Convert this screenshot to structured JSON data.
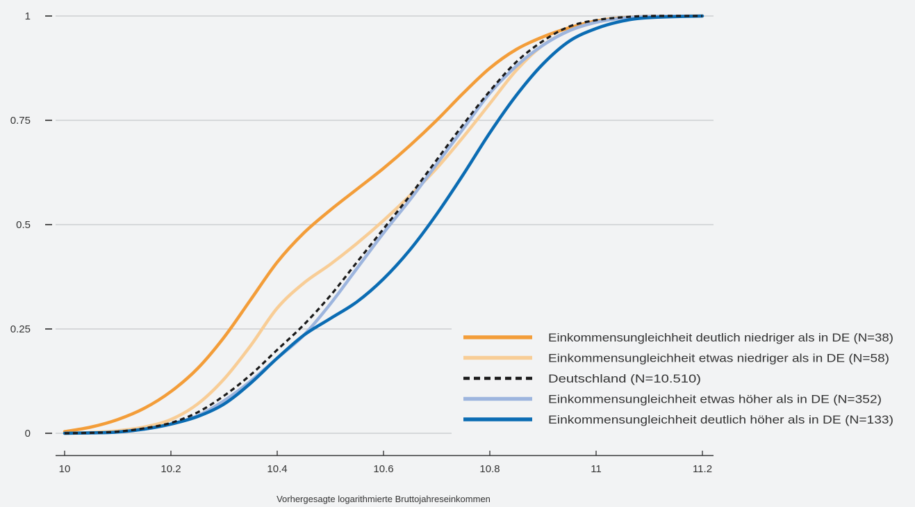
{
  "chart_data": {
    "type": "line",
    "title": "",
    "xlabel": "Vorhergesagte logarithmierte Bruttojahreseinkommen",
    "ylabel": "",
    "xlim": [
      10,
      11.2
    ],
    "ylim": [
      0,
      1
    ],
    "x_ticks": [
      "10",
      "10.2",
      "10.4",
      "10.6",
      "10.8",
      "11",
      "11.2"
    ],
    "y_ticks": [
      "0",
      "0.25",
      "0.5",
      "0.75",
      "1"
    ],
    "grid": "horizontal",
    "legend_position": "bottom-right",
    "series": [
      {
        "name": "Einkommensungleichheit deutlich niedriger als in DE (N=38)",
        "color": "#f39d39",
        "dash": "solid",
        "points": [
          [
            10.0,
            0.004
          ],
          [
            10.05,
            0.015
          ],
          [
            10.1,
            0.033
          ],
          [
            10.15,
            0.06
          ],
          [
            10.2,
            0.1
          ],
          [
            10.25,
            0.155
          ],
          [
            10.3,
            0.23
          ],
          [
            10.35,
            0.32
          ],
          [
            10.4,
            0.41
          ],
          [
            10.45,
            0.48
          ],
          [
            10.5,
            0.535
          ],
          [
            10.55,
            0.585
          ],
          [
            10.6,
            0.635
          ],
          [
            10.65,
            0.69
          ],
          [
            10.7,
            0.75
          ],
          [
            10.75,
            0.815
          ],
          [
            10.8,
            0.875
          ],
          [
            10.85,
            0.92
          ],
          [
            10.9,
            0.95
          ],
          [
            10.95,
            0.972
          ],
          [
            11.0,
            0.988
          ],
          [
            11.05,
            0.996
          ],
          [
            11.1,
            0.999
          ],
          [
            11.2,
            1.0
          ]
        ]
      },
      {
        "name": "Einkommensungleichheit etwas niedriger als in DE (N=58)",
        "color": "#f8cd96",
        "dash": "solid",
        "points": [
          [
            10.0,
            0.0
          ],
          [
            10.05,
            0.002
          ],
          [
            10.1,
            0.006
          ],
          [
            10.15,
            0.015
          ],
          [
            10.2,
            0.033
          ],
          [
            10.25,
            0.07
          ],
          [
            10.3,
            0.13
          ],
          [
            10.35,
            0.21
          ],
          [
            10.4,
            0.3
          ],
          [
            10.45,
            0.36
          ],
          [
            10.5,
            0.405
          ],
          [
            10.55,
            0.455
          ],
          [
            10.6,
            0.51
          ],
          [
            10.65,
            0.57
          ],
          [
            10.7,
            0.635
          ],
          [
            10.75,
            0.71
          ],
          [
            10.8,
            0.79
          ],
          [
            10.85,
            0.87
          ],
          [
            10.9,
            0.93
          ],
          [
            10.95,
            0.965
          ],
          [
            11.0,
            0.985
          ],
          [
            11.05,
            0.995
          ],
          [
            11.1,
            0.999
          ],
          [
            11.2,
            1.0
          ]
        ]
      },
      {
        "name": "Deutschland (N=10.510)",
        "color": "#1a1a1a",
        "dash": "dashed",
        "points": [
          [
            10.0,
            0.0
          ],
          [
            10.05,
            0.001
          ],
          [
            10.1,
            0.004
          ],
          [
            10.15,
            0.012
          ],
          [
            10.2,
            0.025
          ],
          [
            10.25,
            0.05
          ],
          [
            10.3,
            0.09
          ],
          [
            10.35,
            0.14
          ],
          [
            10.4,
            0.2
          ],
          [
            10.45,
            0.26
          ],
          [
            10.5,
            0.33
          ],
          [
            10.55,
            0.41
          ],
          [
            10.6,
            0.49
          ],
          [
            10.65,
            0.57
          ],
          [
            10.7,
            0.655
          ],
          [
            10.75,
            0.74
          ],
          [
            10.8,
            0.82
          ],
          [
            10.85,
            0.89
          ],
          [
            10.9,
            0.94
          ],
          [
            10.95,
            0.975
          ],
          [
            11.0,
            0.99
          ],
          [
            11.05,
            0.997
          ],
          [
            11.1,
            1.0
          ],
          [
            11.2,
            1.0
          ]
        ]
      },
      {
        "name": "Einkommensungleichheit etwas höher als in DE (N=352)",
        "color": "#9db5de",
        "dash": "solid",
        "points": [
          [
            10.0,
            0.0
          ],
          [
            10.05,
            0.001
          ],
          [
            10.1,
            0.003
          ],
          [
            10.15,
            0.01
          ],
          [
            10.2,
            0.022
          ],
          [
            10.25,
            0.042
          ],
          [
            10.3,
            0.078
          ],
          [
            10.35,
            0.125
          ],
          [
            10.4,
            0.18
          ],
          [
            10.45,
            0.235
          ],
          [
            10.5,
            0.31
          ],
          [
            10.55,
            0.395
          ],
          [
            10.6,
            0.48
          ],
          [
            10.65,
            0.56
          ],
          [
            10.7,
            0.645
          ],
          [
            10.75,
            0.73
          ],
          [
            10.8,
            0.815
          ],
          [
            10.85,
            0.88
          ],
          [
            10.9,
            0.93
          ],
          [
            10.95,
            0.965
          ],
          [
            11.0,
            0.985
          ],
          [
            11.05,
            0.995
          ],
          [
            11.1,
            0.999
          ],
          [
            11.2,
            1.0
          ]
        ]
      },
      {
        "name": "Einkommensungleichheit deutlich höher als in DE (N=133)",
        "color": "#0b6cb3",
        "dash": "solid",
        "points": [
          [
            10.0,
            0.0
          ],
          [
            10.05,
            0.001
          ],
          [
            10.1,
            0.003
          ],
          [
            10.15,
            0.01
          ],
          [
            10.2,
            0.022
          ],
          [
            10.25,
            0.04
          ],
          [
            10.3,
            0.07
          ],
          [
            10.35,
            0.12
          ],
          [
            10.4,
            0.18
          ],
          [
            10.45,
            0.235
          ],
          [
            10.5,
            0.275
          ],
          [
            10.55,
            0.315
          ],
          [
            10.6,
            0.37
          ],
          [
            10.65,
            0.44
          ],
          [
            10.7,
            0.525
          ],
          [
            10.75,
            0.62
          ],
          [
            10.8,
            0.72
          ],
          [
            10.85,
            0.81
          ],
          [
            10.9,
            0.885
          ],
          [
            10.95,
            0.94
          ],
          [
            11.0,
            0.97
          ],
          [
            11.05,
            0.988
          ],
          [
            11.1,
            0.996
          ],
          [
            11.2,
            1.0
          ]
        ]
      }
    ]
  }
}
